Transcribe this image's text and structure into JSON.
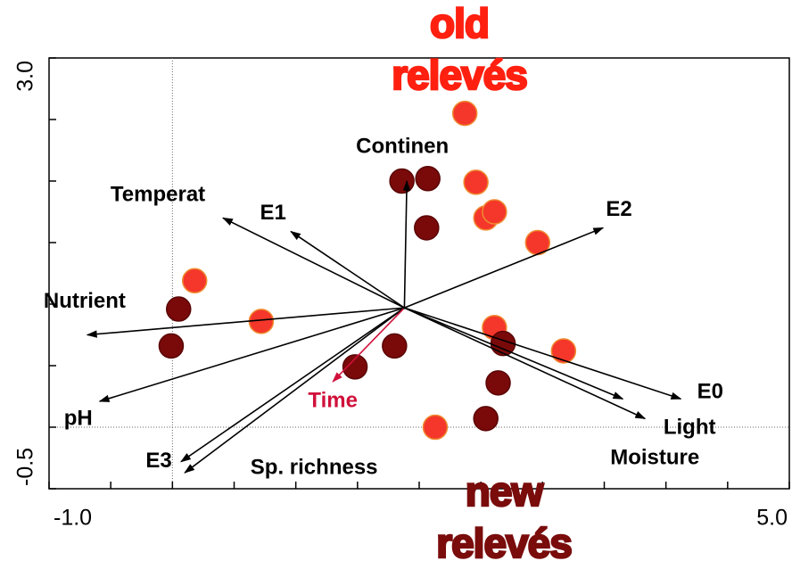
{
  "chart_data": {
    "type": "biplot",
    "xlim": [
      -1,
      5
    ],
    "ylim": [
      -0.5,
      3
    ],
    "xticks": [
      {
        "value": -1,
        "label": "-1.0"
      },
      {
        "value": 5,
        "label": "5.0"
      }
    ],
    "yticks": [
      {
        "value": -0.5,
        "label": "-0.5"
      },
      {
        "value": 3,
        "label": "3.0"
      }
    ],
    "xminorticks": [
      -0.5,
      0,
      0.5,
      1,
      1.5,
      2,
      2.5,
      3,
      3.5,
      4,
      4.5
    ],
    "yminorticks": [
      0,
      0.5,
      1,
      1.5,
      2,
      2.5
    ],
    "zero_lines": true,
    "arrow_origin": [
      1.88,
      0.97
    ],
    "arrows": [
      {
        "name": "Continen",
        "x": 1.9,
        "y": 2.0,
        "color": "#000000"
      },
      {
        "name": "Temperat",
        "x": 0.41,
        "y": 1.7,
        "color": "#000000"
      },
      {
        "name": "E1",
        "x": 0.96,
        "y": 1.59,
        "color": "#000000"
      },
      {
        "name": "E2",
        "x": 3.49,
        "y": 1.62,
        "color": "#000000"
      },
      {
        "name": "Nutrient",
        "x": -0.69,
        "y": 0.75,
        "color": "#000000"
      },
      {
        "name": "pH",
        "x": -0.59,
        "y": 0.21,
        "color": "#000000"
      },
      {
        "name": "E3",
        "x": 0.07,
        "y": -0.28,
        "color": "#000000"
      },
      {
        "name": "Sp. richness",
        "x": 0.1,
        "y": -0.37,
        "color": "#000000"
      },
      {
        "name": "Time",
        "x": 1.3,
        "y": 0.37,
        "color": "#d0103a"
      },
      {
        "name": "E0",
        "x": 4.12,
        "y": 0.23,
        "color": "#000000"
      },
      {
        "name": "Light",
        "x": 3.83,
        "y": 0.07,
        "color": "#000000"
      },
      {
        "name": "Moisture",
        "x": 3.65,
        "y": 0.23,
        "color": "#000000"
      }
    ],
    "series": [
      {
        "color": "#f4372a",
        "edge": "#f08a30",
        "x": [
          2.37,
          2.46,
          2.54,
          2.61,
          2.96,
          0.18,
          0.72,
          2.61,
          3.17,
          2.13
        ],
        "y": [
          2.55,
          1.99,
          1.7,
          1.75,
          1.5,
          1.19,
          0.86,
          0.81,
          0.62,
          0.0
        ]
      },
      {
        "color": "#7a0a0a",
        "edge": "#5a0505",
        "x": [
          1.86,
          2.07,
          2.06,
          0.05,
          -0.01,
          1.48,
          1.8,
          2.68,
          2.64,
          2.54
        ],
        "y": [
          2.0,
          2.02,
          1.62,
          0.96,
          0.66,
          0.49,
          0.66,
          0.68,
          0.36,
          0.07
        ]
      }
    ],
    "annotations": [
      {
        "lines": [
          "old",
          "relevés"
        ],
        "color": "#ff2010"
      },
      {
        "lines": [
          "new",
          "relevés"
        ],
        "color": "#7a0c0c"
      }
    ]
  }
}
